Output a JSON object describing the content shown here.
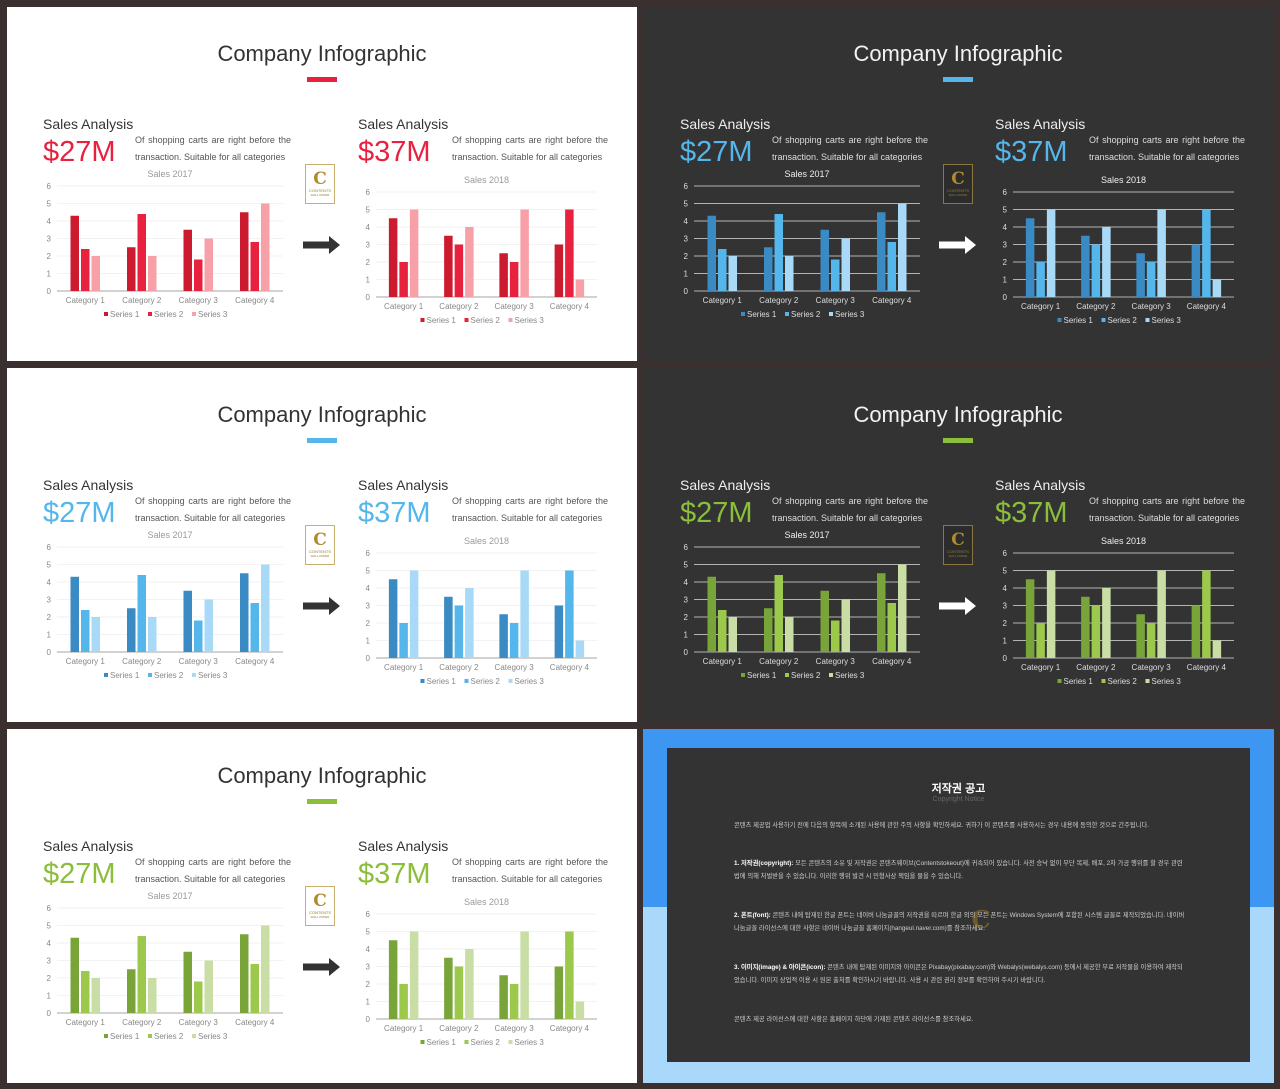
{
  "chart_data": [
    {
      "type": "bar",
      "title": "Sales 2017",
      "categories": [
        "Category 1",
        "Category 2",
        "Category 3",
        "Category 4"
      ],
      "series": [
        {
          "name": "Series 1",
          "values": [
            4.3,
            2.5,
            3.5,
            4.5
          ]
        },
        {
          "name": "Series 2",
          "values": [
            2.4,
            4.4,
            1.8,
            2.8
          ]
        },
        {
          "name": "Series 3",
          "values": [
            2,
            2,
            3,
            5
          ]
        }
      ],
      "ylim": [
        0,
        6
      ],
      "yticks": [
        0,
        1,
        2,
        3,
        4,
        5,
        6
      ]
    },
    {
      "type": "bar",
      "title": "Sales 2018",
      "categories": [
        "Category 1",
        "Category 2",
        "Category 3",
        "Category 4"
      ],
      "series": [
        {
          "name": "Series 1",
          "values": [
            4.5,
            3.5,
            2.5,
            3
          ]
        },
        {
          "name": "Series 2",
          "values": [
            2,
            3,
            2,
            5
          ]
        },
        {
          "name": "Series 3",
          "values": [
            5,
            4,
            5,
            1
          ]
        }
      ],
      "ylim": [
        0,
        6
      ],
      "yticks": [
        0,
        1,
        2,
        3,
        4,
        5,
        6
      ]
    }
  ],
  "common": {
    "title": "Company Infographic",
    "left": {
      "label": "Sales Analysis",
      "value": "$27M"
    },
    "right": {
      "label": "Sales Analysis",
      "value": "$37M"
    },
    "desc": "Of shopping carts are right before the transaction. Suitable for all categories",
    "badge": {
      "letter": "C",
      "line1": "CONTENTS",
      "line2": "WALL PAPER"
    }
  },
  "themes": [
    {
      "bg": "light",
      "accent": "#e8213f",
      "colors": [
        "#cc1a2e",
        "#e8213f",
        "#f7a0a7"
      ],
      "arrow": "#333333"
    },
    {
      "bg": "dark",
      "accent": "#55b6ec",
      "colors": [
        "#3a8ac4",
        "#55b6ec",
        "#a8daf7"
      ],
      "arrow": "#ffffff"
    },
    {
      "bg": "light",
      "accent": "#55b6ec",
      "colors": [
        "#3a8ac4",
        "#55b6ec",
        "#a8daf7"
      ],
      "arrow": "#333333"
    },
    {
      "bg": "dark",
      "accent": "#8bbe3a",
      "colors": [
        "#79a43a",
        "#9cc84b",
        "#c8dea4"
      ],
      "arrow": "#ffffff"
    },
    {
      "bg": "light",
      "accent": "#8bbe3a",
      "colors": [
        "#79a43a",
        "#9cc84b",
        "#c8dea4"
      ],
      "arrow": "#333333"
    }
  ],
  "copyright": {
    "title": "저작권 공고",
    "subtitle": "Copyright Notice",
    "intro": "콘텐츠 제공업 사용하기 전에 다음의 항목에 소개된 사용에 관한 주의 사항을 확인하세요. 귀하가 이 콘텐츠를 사용하시는 경우 내용에 동의한 것으로 간주됩니다.",
    "p1_head": "1. 저작권(copyright):",
    "p1": " 모든 콘텐츠의 소유 및 저작권은 콘텐츠웨이브(Contentstokeout)에 귀속되어 있습니다. 사전 승낙 없이 무단 복제, 배포, 2차 가공 행위를 할 경우 관련 법에 의해 처벌받을 수 있습니다. 이러한 행위 발견 시 민형사상 책임을 물을 수 있습니다.",
    "p2_head": "2. 폰트(font):",
    "p2": " 콘텐츠 내에 탑재된 한글 폰트는 네이버 나눔글꼴의 저작권을 따르며 한글 외의 모든 폰트는 Windows System에 포함된 시스템 글꼴로 제작되었습니다. 네이버 나눔글꼴 라이선스에 대한 사항은 네이버 나눔글꼴 홈페이지(hangeul.naver.com)를 참조하세요.",
    "p3_head": "3. 이미지(image) & 아이콘(icon):",
    "p3": " 콘텐츠 내에 탑재된 이미지와 아이콘은 Pixabay(pixabay.com)와 Webalys(webalys.com) 등에서 제공한 무료 저작물을 이용하여 제작되었습니다. 이미지 상업적 이용 시 원본 출처를 확인하시기 바랍니다. 사용 시 관련 권리 정보를 확인하여 주시기 바랍니다.",
    "outro": "콘텐츠 제공 라이선스에 대한 사항은 홈페이지 하단에 기재된 콘텐츠 라이선스를 참조하세요."
  }
}
